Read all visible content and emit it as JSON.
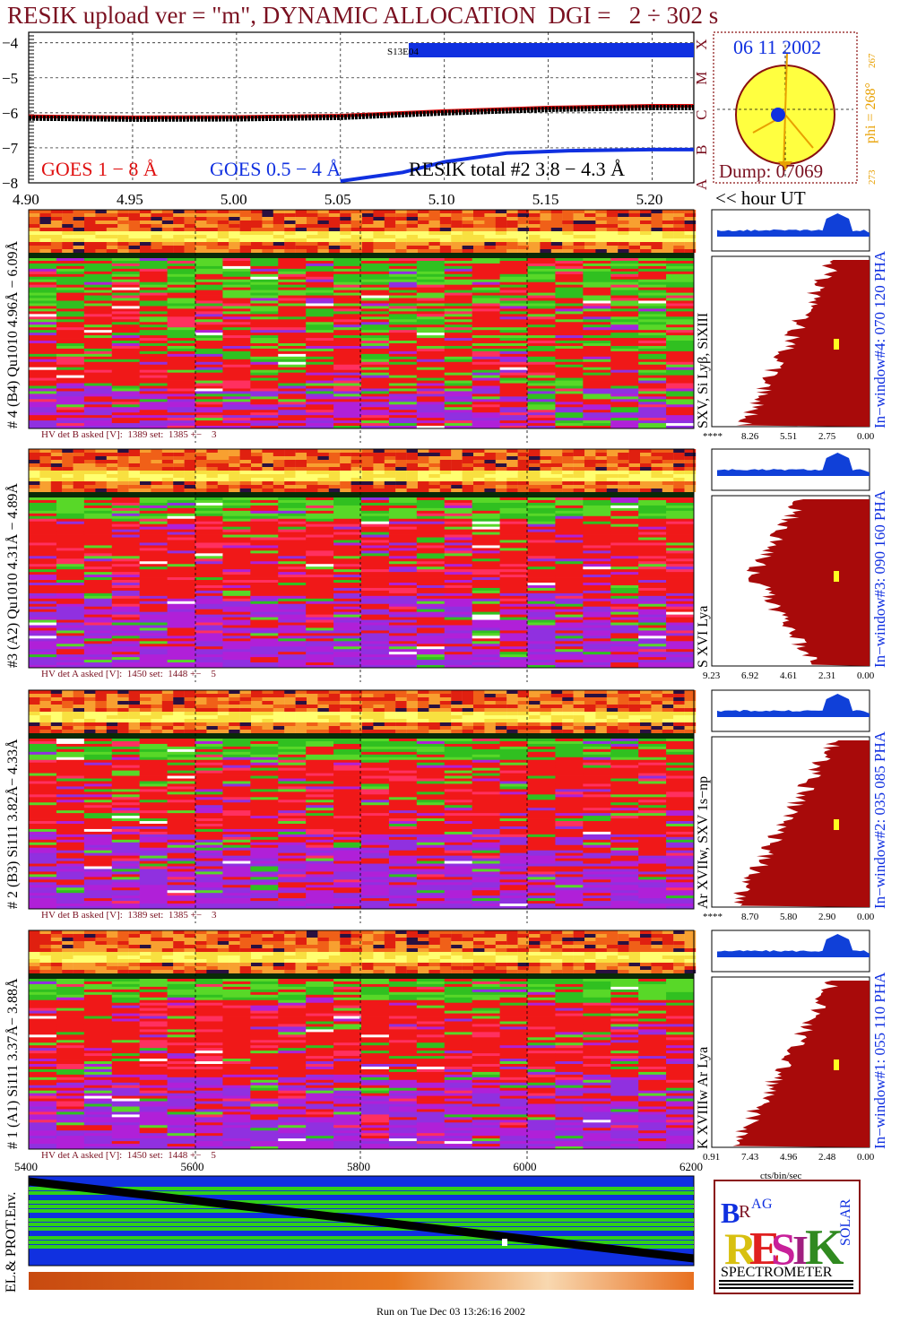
{
  "title": "RESIK upload ver = \"m\", DYNAMIC ALLOCATION  DGI =   2 ÷ 302 s",
  "goes_panel": {
    "yticks": [
      "−4",
      "−5",
      "−6",
      "−7",
      "−8"
    ],
    "xticks": [
      "4.90",
      "4.95",
      "5.00",
      "5.05",
      "5.10",
      "5.15",
      "5.20"
    ],
    "class_letters": [
      "X",
      "M",
      "C",
      "B",
      "A"
    ],
    "legend_goes18": "GOES 1 − 8 Å",
    "legend_goes054": "GOES 0.5 − 4 Å",
    "legend_resik": "RESIK total #2  3.8 − 4.3 Å",
    "bar_label": "S13E04",
    "hour_label": "<< hour UT"
  },
  "sun_panel": {
    "date": "06 11 2002",
    "phi": "phi = 268°",
    "phi_small": "267",
    "phi_bottom": "273",
    "dump": "Dump: 07069"
  },
  "channels": [
    {
      "left_label": "# 4 (B4) Qu1010 4.96Å − 6.09Å",
      "right_label": "SXV, Si Lyβ, SiXIII",
      "pha_label": "In−window#4:  070 120 PHA",
      "hv": "HV det B asked [V]:  1389 set:  1385 +−    3",
      "xaxis": [
        "****",
        "8.26",
        "5.51",
        "2.75",
        "0.00"
      ]
    },
    {
      "left_label": "#3 (A2) Qu1010  4.31Å − 4.89Å",
      "right_label": "S XVI Lya",
      "pha_label": "In−window#3:  090 160 PHA",
      "hv": "HV det A asked [V]:  1450 set:  1448 +−    5",
      "xaxis": [
        "9.23",
        "6.92",
        "4.61",
        "2.31",
        "0.00"
      ]
    },
    {
      "left_label": "# 2 (B3) Si111  3.82Å− 4.33Å",
      "right_label": "Ar XVIIw,  SXV 1s−np",
      "pha_label": "In−window#2:  035 085 PHA",
      "hv": "HV det B asked [V]:  1389 set:  1385 +−    3",
      "xaxis": [
        "****",
        "8.70",
        "5.80",
        "2.90",
        "0.00"
      ]
    },
    {
      "left_label": "# 1 (A1) Si111  3.37Å− 3.88Å",
      "right_label": "K XVIIIw  Ar Lya",
      "pha_label": "In−window#1:  055 110 PHA",
      "hv": "HV det A asked [V]:  1450 set:  1448 +−    5",
      "xaxis": [
        "0.91",
        "7.43",
        "4.96",
        "2.48",
        "0.00"
      ]
    }
  ],
  "pha_unit": "cts/bin/sec",
  "env_panel": {
    "label": "EL.& PROT.Env.",
    "xticks": [
      "5400",
      "5600",
      "5800",
      "6000",
      "6200"
    ]
  },
  "logo": {
    "letters": "BRAG RESIK SOLAR",
    "spectrometer": "SPECTROMETER"
  },
  "footer": "Run on Tue Dec 03 13:26:16 2002",
  "colors": {
    "title": "#7a1020",
    "goes_red": "#e01010",
    "goes_blue": "#1030e0",
    "pha_blue": "#1040d8",
    "pha_darkred": "#a80a0a",
    "sun_yellow": "#ffff40",
    "sun_border": "#8a1010",
    "orange": "#e8a000"
  },
  "chart_data": {
    "type": "line",
    "series": [
      {
        "name": "GOES 1 − 8 Å",
        "x": [
          4.9,
          4.95,
          5.0,
          5.05,
          5.1,
          5.15,
          5.2,
          5.22
        ],
        "y": [
          -6.1,
          -6.13,
          -6.12,
          -6.08,
          -5.95,
          -5.85,
          -5.8,
          -5.8
        ]
      },
      {
        "name": "GOES 0.5 − 4 Å",
        "x": [
          5.05,
          5.08,
          5.1,
          5.13,
          5.16,
          5.2,
          5.22
        ],
        "y": [
          -7.95,
          -7.7,
          -7.4,
          -7.15,
          -7.08,
          -7.05,
          -7.05
        ]
      }
    ],
    "xlim": [
      4.9,
      5.22
    ],
    "ylim": [
      -8,
      -3.7
    ]
  }
}
